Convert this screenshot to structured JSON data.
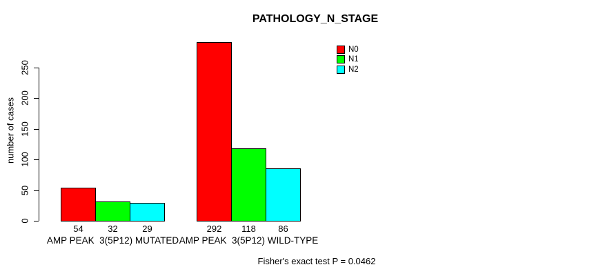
{
  "figure": {
    "title": "PATHOLOGY_N_STAGE",
    "footer_note": "Fisher's exact test P = 0.0462"
  },
  "chart_data": {
    "type": "bar",
    "title": "PATHOLOGY_N_STAGE",
    "xlabel": "",
    "ylabel": "number of cases",
    "yticks": [
      0,
      50,
      100,
      150,
      200,
      250
    ],
    "ylim": [
      0,
      295
    ],
    "grid": false,
    "categories": [
      "AMP PEAK  3(5P12) MUTATED",
      "AMP PEAK  3(5P12) WILD-TYPE"
    ],
    "series": [
      {
        "name": "N0",
        "color": "#ff0000",
        "values": [
          54,
          292
        ]
      },
      {
        "name": "N1",
        "color": "#00ff00",
        "values": [
          32,
          118
        ]
      },
      {
        "name": "N2",
        "color": "#00ffff",
        "values": [
          29,
          86
        ]
      }
    ],
    "bar_value_labels": [
      [
        "54",
        "32",
        "29"
      ],
      [
        "292",
        "118",
        "86"
      ]
    ],
    "legend": {
      "position": "top-right-inside",
      "entries": [
        "N0",
        "N1",
        "N2"
      ]
    },
    "annotation": "Fisher's exact test P = 0.0462"
  }
}
